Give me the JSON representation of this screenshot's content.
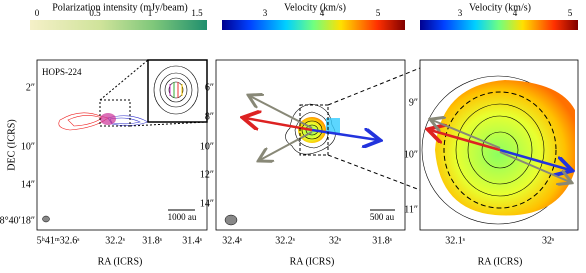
{
  "panels": [
    {
      "colorbar_label": "Polarization intensity (mJy/beam)",
      "colorbar_ticks": [
        "0",
        "0.5",
        "1",
        "1.5"
      ],
      "x_ticks": [
        "5ʰ41ᵐ32.6ˢ",
        "32.2ˢ",
        "31.8ˢ",
        "31.4ˢ"
      ],
      "y_ticks": [
        "2″",
        "10″",
        "14″",
        "-8°40′18″"
      ],
      "x_label": "RA (ICRS)",
      "y_label": "DEC (ICRS)",
      "annotations": [
        "HOPS-224",
        "1000 au"
      ]
    },
    {
      "colorbar_label": "Velocity (km/s)",
      "colorbar_ticks": [
        "3",
        "4",
        "5"
      ],
      "x_ticks": [
        "32.4ˢ",
        "32.2ˢ",
        "32ˢ",
        "31.8ˢ"
      ],
      "y_ticks": [
        "6″",
        "8″",
        "10″",
        "12″",
        "14″"
      ],
      "x_label": "RA (ICRS)",
      "annotations": [
        "500 au"
      ]
    },
    {
      "colorbar_label": "Velocity (km/s)",
      "colorbar_ticks": [
        "3",
        "4",
        "5"
      ],
      "x_ticks": [
        "32.1ˢ",
        "32ˢ"
      ],
      "y_ticks": [
        "9″",
        "10″",
        "11″"
      ],
      "x_label": "RA (ICRS)",
      "annotations": []
    }
  ]
}
